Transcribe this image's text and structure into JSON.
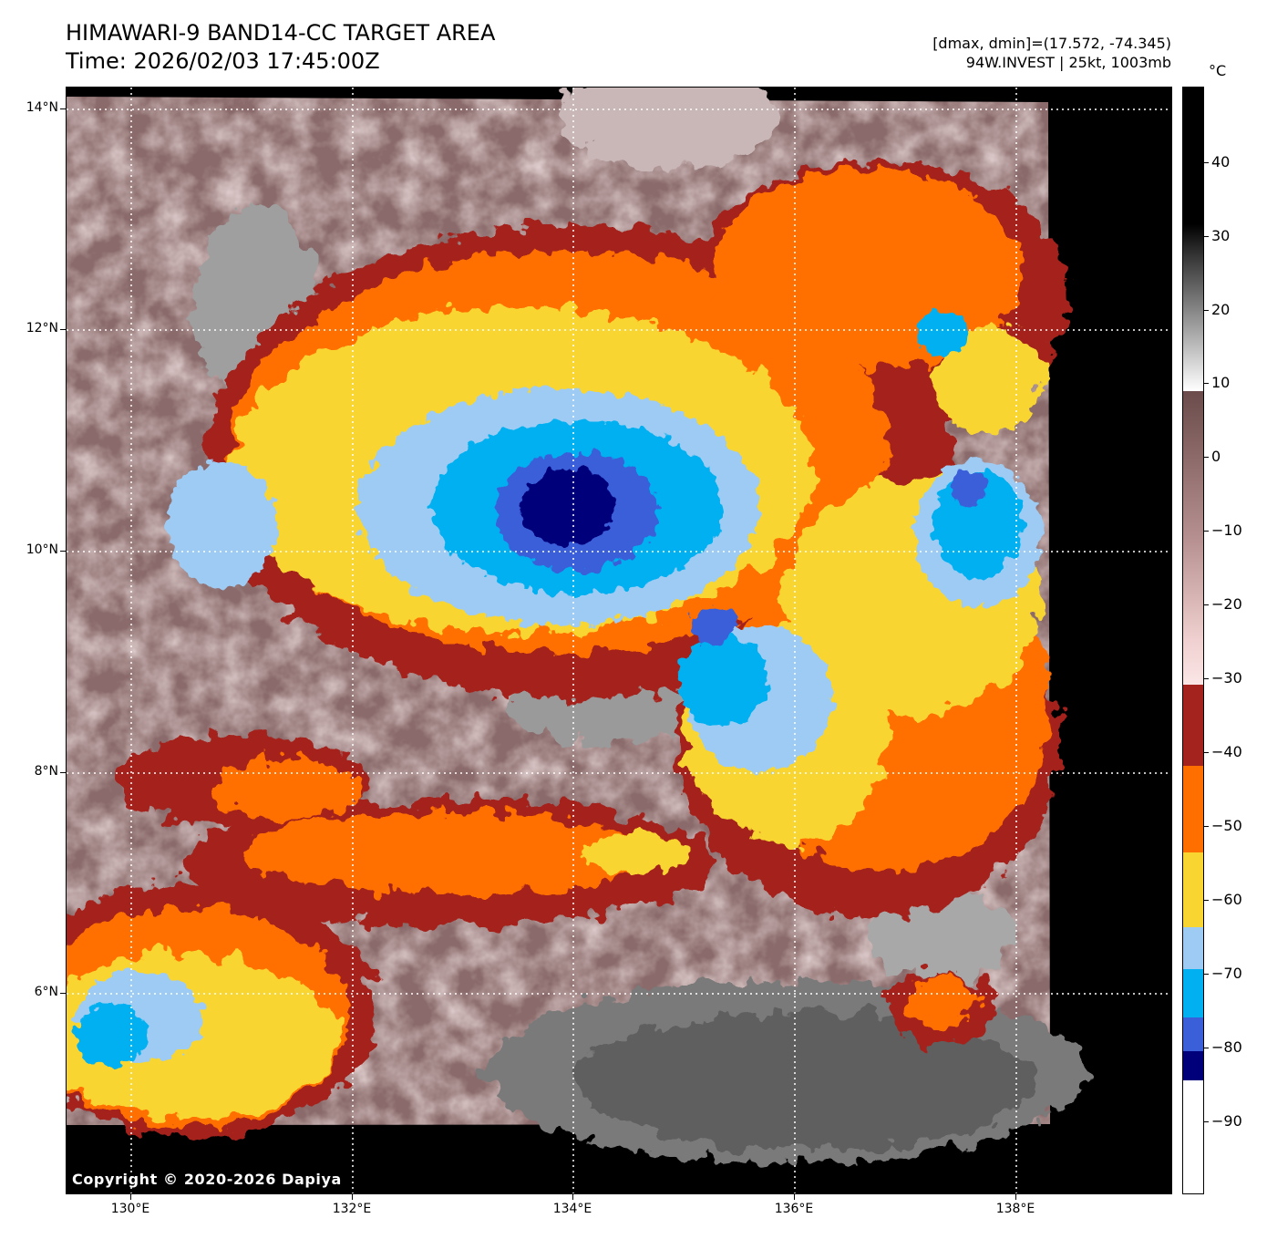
{
  "title": {
    "line1": "HIMAWARI-9 BAND14-CC TARGET AREA",
    "line2": "Time: 2026/02/03 17:45:00Z"
  },
  "info": {
    "line1": "[dmax, dmin]=(17.572, -74.345)",
    "line2": "94W.INVEST | 25kt, 1003mb"
  },
  "copyright": "Copyright © 2020-2026 Dapiya",
  "map": {
    "lat_labels": [
      "14°N",
      "12°N",
      "10°N",
      "8°N",
      "6°N"
    ],
    "lon_labels": [
      "130°E",
      "132°E",
      "134°E",
      "136°E",
      "138°E"
    ],
    "gridlines": "dotted-white",
    "image_description": "infrared cloud-top temperature imagery, storm centred near 10.6°N 133.9°E"
  },
  "colorbar": {
    "unit": "°C",
    "ticks": [
      "40",
      "30",
      "20",
      "10",
      "0",
      "−10",
      "−20",
      "−30",
      "−40",
      "−50",
      "−60",
      "−70",
      "−80",
      "−90"
    ],
    "bands": [
      {
        "color": "#00007a",
        "label": "< -82"
      },
      {
        "color": "#3a5fd9",
        "label": "-78 to -82"
      },
      {
        "color": "#00b0f0",
        "label": "-70 to -78"
      },
      {
        "color": "#9ecbf3",
        "label": "-65 to -70"
      },
      {
        "color": "#f9d531",
        "label": "-55 to -65"
      },
      {
        "color": "#ff6f00",
        "label": "-43 to -55"
      },
      {
        "color": "#a5231e",
        "label": "-31 to -43"
      },
      {
        "color": "#f2d3d3",
        "label": "-31 pinkish"
      },
      {
        "color": "#6e4d4d",
        "label": "~10 brown"
      }
    ]
  }
}
